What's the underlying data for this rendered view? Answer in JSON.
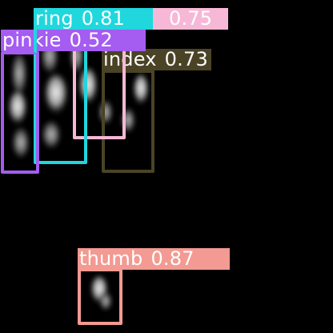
{
  "detections": [
    {
      "id": "ring",
      "class": "ring",
      "score": "0.81",
      "color": "#1fd7dd",
      "text_color": "#ffffff"
    },
    {
      "id": "ring-2",
      "class": "",
      "score": "0.75",
      "color": "#f6b8d6",
      "text_color": "#ffffff"
    },
    {
      "id": "pinkie",
      "class": "pinkie",
      "score": "0.52",
      "color": "#a55cf0",
      "text_color": "#ffffff"
    },
    {
      "id": "index",
      "class": "index",
      "score": "0.73",
      "color": "#4a4326",
      "text_color": "#ffffff"
    },
    {
      "id": "thumb",
      "class": "thumb",
      "score": "0.87",
      "color": "#f39a92",
      "text_color": "#ffffff"
    }
  ]
}
